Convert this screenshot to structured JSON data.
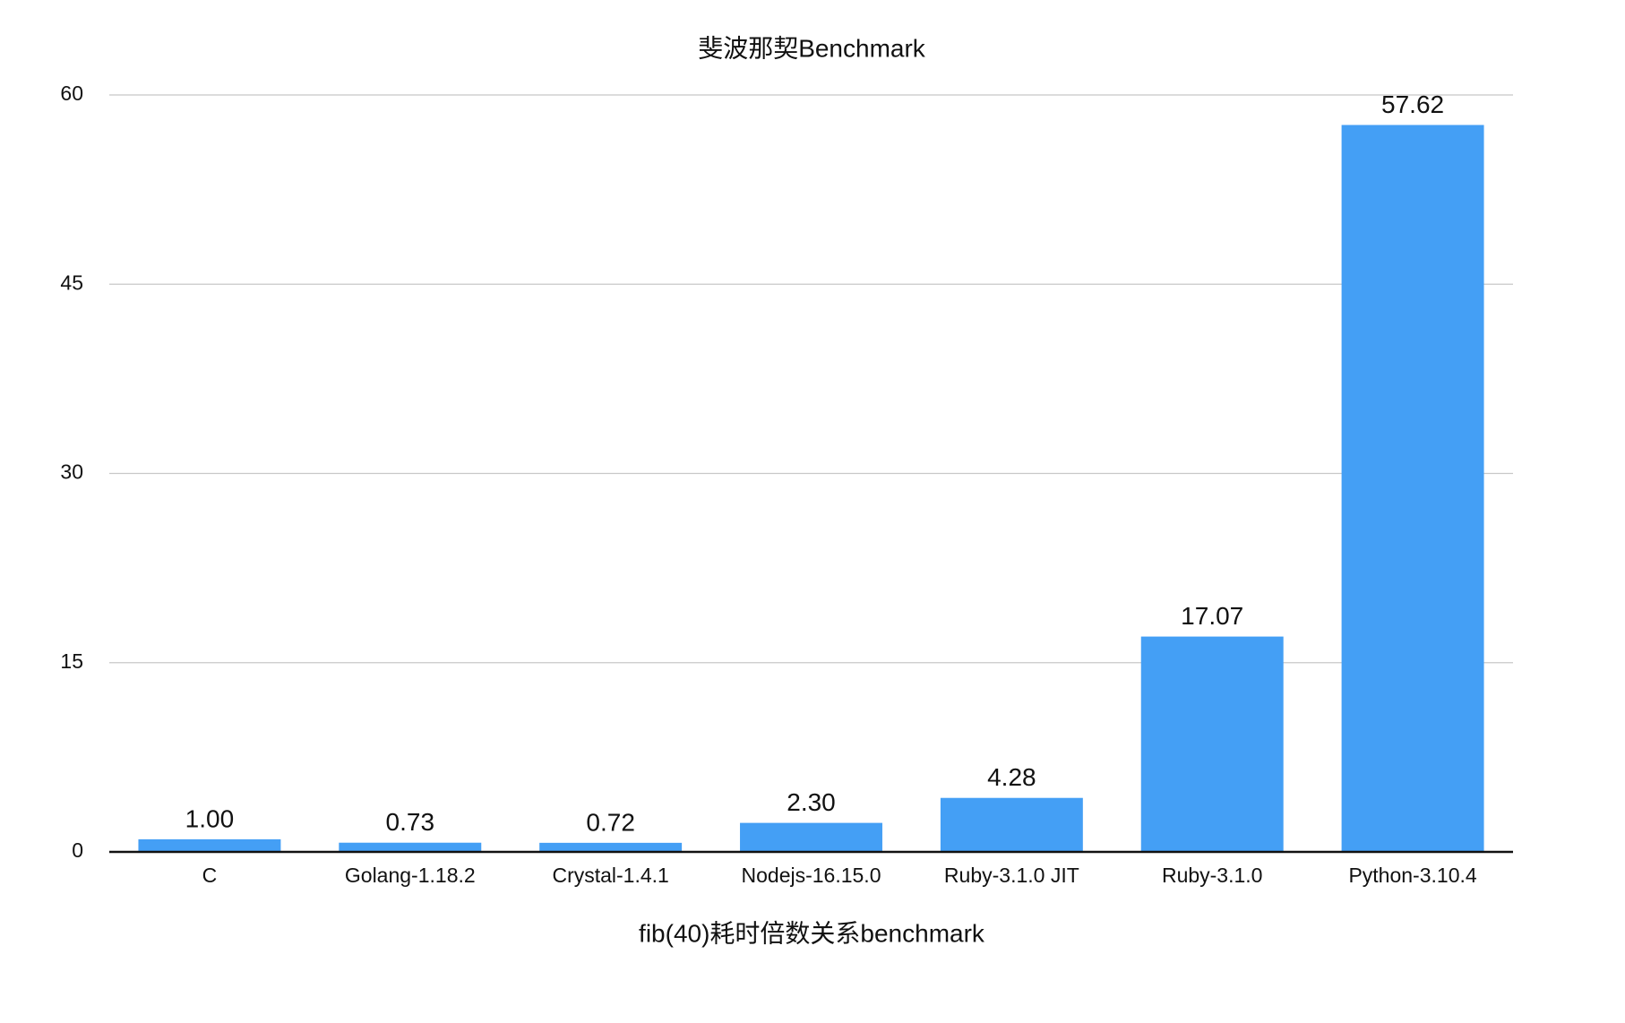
{
  "chart_data": {
    "type": "bar",
    "title": "斐波那契Benchmark",
    "x_label": "fib(40)耗时倍数关系benchmark",
    "categories": [
      "C",
      "Golang-1.18.2",
      "Crystal-1.4.1",
      "Nodejs-16.15.0",
      "Ruby-3.1.0 JIT",
      "Ruby-3.1.0",
      "Python-3.10.4"
    ],
    "values": [
      1,
      0.73,
      0.72,
      2.3,
      4.28,
      17.07,
      57.62
    ],
    "value_labels": [
      "1.00",
      "0.73",
      "0.72",
      "2.30",
      "4.28",
      "17.07",
      "57.62"
    ],
    "color": "#449ff5",
    "ylim": [
      0,
      60
    ],
    "yticks": [
      0,
      15,
      30,
      45,
      60
    ],
    "grid": true
  }
}
